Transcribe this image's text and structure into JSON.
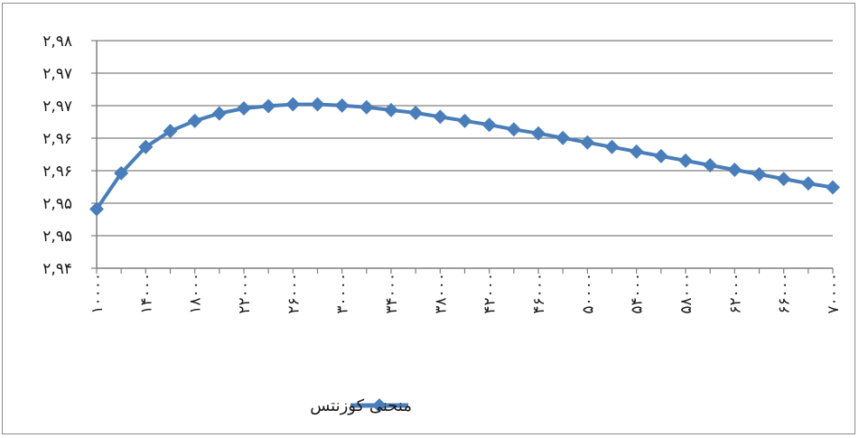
{
  "chart_data": {
    "type": "line",
    "title": "",
    "xlabel": "",
    "ylabel": "",
    "grid": true,
    "legend_position": "bottom",
    "y_tick_labels": [
      "۲,۹۴",
      "۲,۹۵",
      "۲,۹۵",
      "۲,۹۶",
      "۲,۹۶",
      "۲,۹۷",
      "۲,۹۷",
      "۲,۹۸"
    ],
    "ylim": [
      2.94,
      2.98
    ],
    "x_tick_labels": [
      "۱۰۰۰۰",
      "۱۴۰۰۰",
      "۱۸۰۰۰",
      "۲۲۰۰۰",
      "۲۶۰۰۰",
      "۳۰۰۰۰",
      "۳۴۰۰۰",
      "۳۸۰۰۰",
      "۴۲۰۰۰",
      "۴۶۰۰۰",
      "۵۰۰۰۰",
      "۵۴۰۰۰",
      "۵۸۰۰۰",
      "۶۲۰۰۰",
      "۶۶۰۰۰",
      "۷۰۰۰۰"
    ],
    "x": [
      10000,
      12000,
      14000,
      16000,
      18000,
      20000,
      22000,
      24000,
      26000,
      28000,
      30000,
      32000,
      34000,
      36000,
      38000,
      40000,
      42000,
      44000,
      46000,
      48000,
      50000,
      52000,
      54000,
      56000,
      58000,
      60000,
      62000,
      64000,
      66000,
      68000,
      70000
    ],
    "series": [
      {
        "name": "منحنی کوزنتس",
        "color": "#4a7ebb",
        "values": [
          2.9504,
          2.9567,
          2.9613,
          2.9641,
          2.9659,
          2.9672,
          2.9681,
          2.9685,
          2.9688,
          2.9688,
          2.9686,
          2.9683,
          2.9678,
          2.9673,
          2.9666,
          2.9659,
          2.9652,
          2.9644,
          2.9637,
          2.9629,
          2.9621,
          2.9613,
          2.9605,
          2.9597,
          2.9589,
          2.9581,
          2.9573,
          2.9565,
          2.9557,
          2.9549,
          2.9542
        ]
      }
    ]
  }
}
